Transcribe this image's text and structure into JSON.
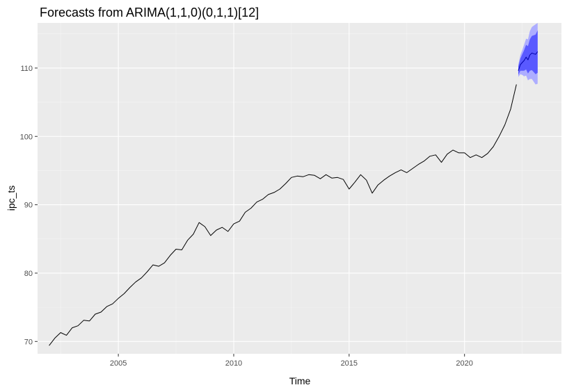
{
  "chart_data": {
    "type": "line",
    "title": "Forecasts from ARIMA(1,1,0)(0,1,1)[12]",
    "xlabel": "Time",
    "ylabel": "ipc_ts",
    "xlim": [
      2001.5,
      2024.2
    ],
    "ylim": [
      68.2,
      116.6
    ],
    "x_ticks": [
      2005,
      2010,
      2015,
      2020
    ],
    "x_tick_labels": [
      "2005",
      "2010",
      "2015",
      "2020"
    ],
    "y_ticks": [
      70,
      80,
      90,
      100,
      110
    ],
    "y_tick_labels": [
      "70",
      "80",
      "90",
      "100",
      "110"
    ],
    "grid": true,
    "legend": "none",
    "colors": {
      "panel": "#ebebeb",
      "grid_major": "#ffffff",
      "grid_minor": "#f5f5f5",
      "line": "#000000",
      "pi80": "#5959ff",
      "pi95": "#adadff",
      "forecast_line": "#0000aa"
    },
    "series": [
      {
        "name": "observed",
        "x": [
          2002.0,
          2002.25,
          2002.5,
          2002.75,
          2003.0,
          2003.25,
          2003.5,
          2003.75,
          2004.0,
          2004.25,
          2004.5,
          2004.75,
          2005.0,
          2005.25,
          2005.5,
          2005.75,
          2006.0,
          2006.25,
          2006.5,
          2006.75,
          2007.0,
          2007.25,
          2007.5,
          2007.75,
          2008.0,
          2008.25,
          2008.5,
          2008.75,
          2009.0,
          2009.25,
          2009.5,
          2009.75,
          2010.0,
          2010.25,
          2010.5,
          2010.75,
          2011.0,
          2011.25,
          2011.5,
          2011.75,
          2012.0,
          2012.25,
          2012.5,
          2012.75,
          2013.0,
          2013.25,
          2013.5,
          2013.75,
          2014.0,
          2014.25,
          2014.5,
          2014.75,
          2015.0,
          2015.25,
          2015.5,
          2015.75,
          2016.0,
          2016.25,
          2016.5,
          2016.75,
          2017.0,
          2017.25,
          2017.5,
          2017.75,
          2018.0,
          2018.25,
          2018.5,
          2018.75,
          2019.0,
          2019.25,
          2019.5,
          2019.75,
          2020.0,
          2020.25,
          2020.5,
          2020.75,
          2021.0,
          2021.25,
          2021.5,
          2021.75,
          2022.0,
          2022.25
        ],
        "values": [
          69.4,
          70.5,
          71.3,
          70.9,
          72.0,
          72.3,
          73.1,
          73.0,
          74.0,
          74.3,
          75.1,
          75.5,
          76.3,
          77.0,
          77.9,
          78.7,
          79.3,
          80.2,
          81.2,
          81.0,
          81.5,
          82.6,
          83.5,
          83.4,
          84.8,
          85.7,
          87.4,
          86.8,
          85.5,
          86.3,
          86.7,
          86.1,
          87.2,
          87.6,
          88.9,
          89.5,
          90.4,
          90.8,
          91.5,
          91.8,
          92.3,
          93.1,
          94.0,
          94.2,
          94.1,
          94.4,
          94.3,
          93.8,
          94.4,
          93.9,
          94.0,
          93.7,
          92.3,
          93.3,
          94.4,
          93.6,
          91.7,
          92.9,
          93.6,
          94.2,
          94.7,
          95.1,
          94.7,
          95.3,
          95.9,
          96.4,
          97.1,
          97.3,
          96.2,
          97.4,
          98.0,
          97.6,
          97.6,
          96.9,
          97.3,
          96.9,
          97.5,
          98.5,
          100.0,
          101.7,
          104.0,
          107.6
        ]
      },
      {
        "name": "forecast",
        "x": [
          2022.33,
          2022.42,
          2022.5,
          2022.58,
          2022.67,
          2022.75,
          2022.83,
          2022.92,
          2023.0,
          2023.08,
          2023.17
        ],
        "values": [
          109.6,
          110.5,
          110.8,
          111.1,
          111.6,
          111.2,
          111.9,
          112.2,
          112.1,
          112.0,
          112.4
        ],
        "pi80_lower": [
          109.0,
          109.6,
          109.6,
          109.6,
          109.8,
          109.2,
          109.6,
          109.7,
          109.4,
          109.1,
          109.3
        ],
        "pi80_upper": [
          110.2,
          111.4,
          112.0,
          112.6,
          113.4,
          113.2,
          114.2,
          114.7,
          114.8,
          114.9,
          115.5
        ],
        "pi95_lower": [
          108.7,
          109.1,
          109.0,
          108.8,
          108.9,
          108.2,
          108.4,
          108.4,
          108.0,
          107.6,
          107.7
        ],
        "pi95_upper": [
          110.5,
          111.9,
          112.6,
          113.4,
          114.3,
          114.2,
          115.4,
          116.0,
          116.2,
          116.4,
          116.6
        ]
      }
    ]
  }
}
